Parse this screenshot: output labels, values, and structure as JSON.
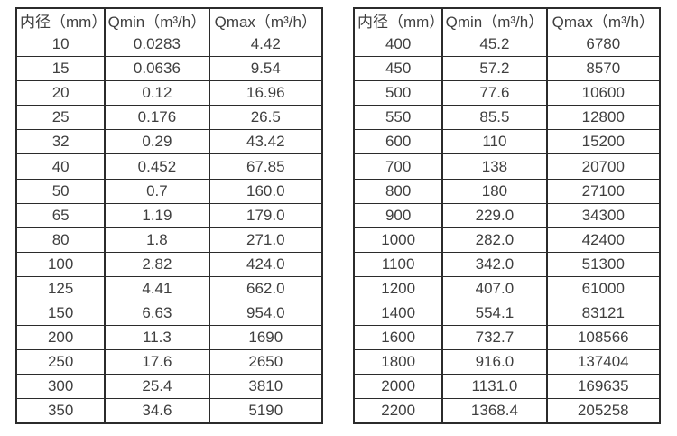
{
  "colors": {
    "border": "#2b2b2b",
    "text": "#3f3f3f",
    "background": "#ffffff"
  },
  "tables": [
    {
      "name": "flow-table-small-diameters",
      "columns": [
        "内径（mm）",
        "Qmin（m³/h）",
        "Qmax（m³/h）"
      ],
      "rows": [
        [
          "10",
          "0.0283",
          "4.42"
        ],
        [
          "15",
          "0.0636",
          "9.54"
        ],
        [
          "20",
          "0.12",
          "16.96"
        ],
        [
          "25",
          "0.176",
          "26.5"
        ],
        [
          "32",
          "0.29",
          "43.42"
        ],
        [
          "40",
          "0.452",
          "67.85"
        ],
        [
          "50",
          "0.7",
          "160.0"
        ],
        [
          "65",
          "1.19",
          "179.0"
        ],
        [
          "80",
          "1.8",
          "271.0"
        ],
        [
          "100",
          "2.82",
          "424.0"
        ],
        [
          "125",
          "4.41",
          "662.0"
        ],
        [
          "150",
          "6.63",
          "954.0"
        ],
        [
          "200",
          "11.3",
          "1690"
        ],
        [
          "250",
          "17.6",
          "2650"
        ],
        [
          "300",
          "25.4",
          "3810"
        ],
        [
          "350",
          "34.6",
          "5190"
        ]
      ]
    },
    {
      "name": "flow-table-large-diameters",
      "columns": [
        "内径（mm）",
        "Qmin（m³/h）",
        "Qmax（m³/h）"
      ],
      "rows": [
        [
          "400",
          "45.2",
          "6780"
        ],
        [
          "450",
          "57.2",
          "8570"
        ],
        [
          "500",
          "77.6",
          "10600"
        ],
        [
          "550",
          "85.5",
          "12800"
        ],
        [
          "600",
          "110",
          "15200"
        ],
        [
          "700",
          "138",
          "20700"
        ],
        [
          "800",
          "180",
          "27100"
        ],
        [
          "900",
          "229.0",
          "34300"
        ],
        [
          "1000",
          "282.0",
          "42400"
        ],
        [
          "1100",
          "342.0",
          "51300"
        ],
        [
          "1200",
          "407.0",
          "61000"
        ],
        [
          "1400",
          "554.1",
          "83121"
        ],
        [
          "1600",
          "732.7",
          "108566"
        ],
        [
          "1800",
          "916.0",
          "137404"
        ],
        [
          "2000",
          "1131.0",
          "169635"
        ],
        [
          "2200",
          "1368.4",
          "205258"
        ]
      ]
    }
  ]
}
